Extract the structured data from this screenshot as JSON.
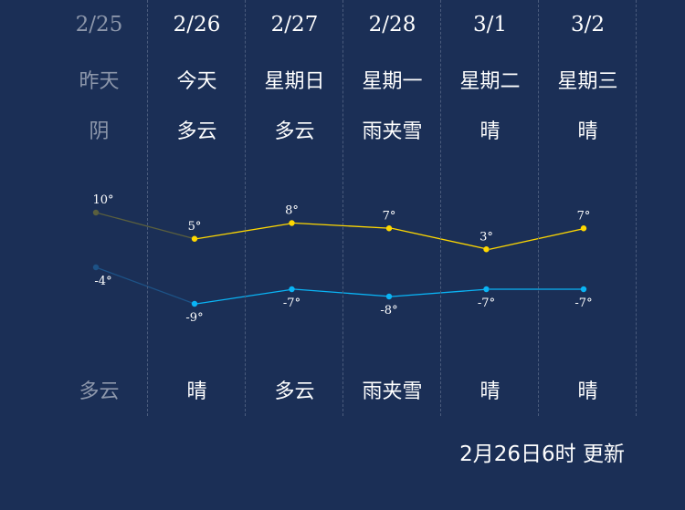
{
  "days": [
    {
      "date": "2/25",
      "weekday": "昨天",
      "day_weather": "阴",
      "night_weather": "多云",
      "past": true
    },
    {
      "date": "2/26",
      "weekday": "今天",
      "day_weather": "多云",
      "night_weather": "晴"
    },
    {
      "date": "2/27",
      "weekday": "星期日",
      "day_weather": "多云",
      "night_weather": "多云"
    },
    {
      "date": "2/28",
      "weekday": "星期一",
      "day_weather": "雨夹雪",
      "night_weather": "雨夹雪"
    },
    {
      "date": "3/1",
      "weekday": "星期二",
      "day_weather": "晴",
      "night_weather": "晴"
    },
    {
      "date": "3/2",
      "weekday": "星期三",
      "day_weather": "晴",
      "night_weather": "晴"
    }
  ],
  "chart_data": {
    "type": "line",
    "categories": [
      "2/25",
      "2/26",
      "2/27",
      "2/28",
      "3/1",
      "3/2"
    ],
    "series": [
      {
        "values": [
          10,
          5,
          8,
          7,
          3,
          7
        ],
        "labels": [
          "10°",
          "5°",
          "8°",
          "7°",
          "3°",
          "7°"
        ],
        "color": "#ffd800"
      },
      {
        "values": [
          -4,
          -9,
          -7,
          -8,
          -7,
          -7
        ],
        "labels": [
          "-4°",
          "-9°",
          "-7°",
          "-8°",
          "-7°",
          "-7°"
        ],
        "color": "#0ab4f5"
      }
    ],
    "past_colors": [
      "#5a5f3e",
      "#1d5286"
    ]
  },
  "update_text": "2月26日6时 更新",
  "colors": {
    "background": "#1b2f56"
  }
}
